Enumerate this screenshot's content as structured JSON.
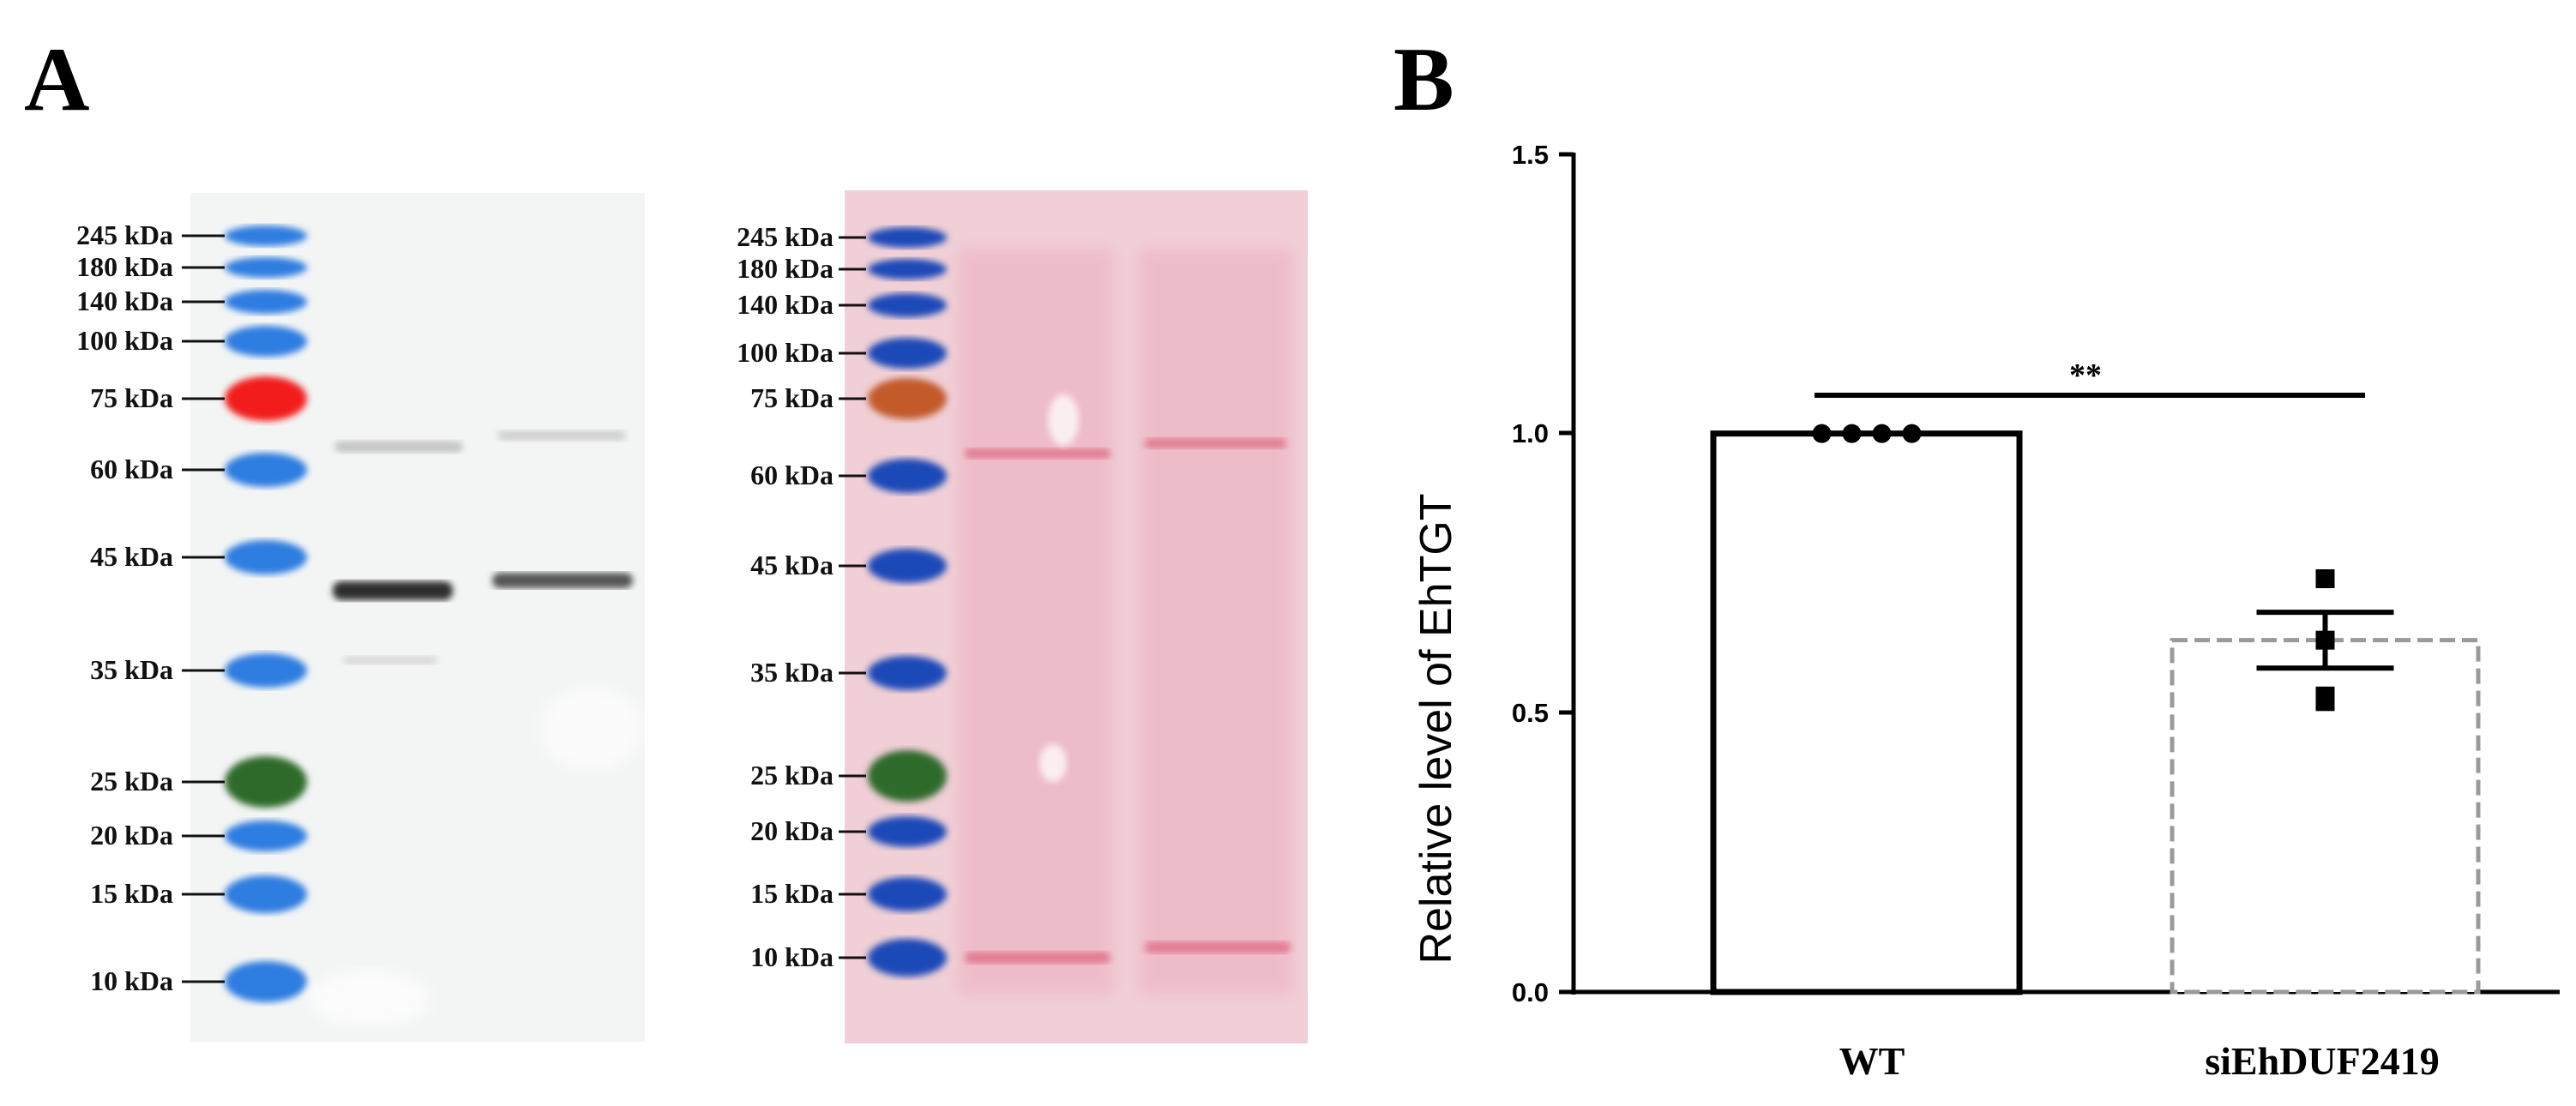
{
  "panels": {
    "a_label": "A",
    "b_label": "B"
  },
  "blot_left": {
    "marker_labels": [
      "245 kDa",
      "180 kDa",
      "140 kDa",
      "100 kDa",
      "75 kDa",
      "60 kDa",
      "45 kDa",
      "35 kDa",
      "25 kDa",
      "20 kDa",
      "15 kDa",
      "10 kDa"
    ],
    "marker_kda": [
      245,
      180,
      140,
      100,
      75,
      60,
      45,
      35,
      25,
      20,
      15,
      10
    ],
    "background_color": "#f3f5f5",
    "band_color": "#2e2e2e"
  },
  "blot_right": {
    "marker_labels": [
      "245 kDa",
      "180 kDa",
      "140 kDa",
      "100 kDa",
      "75 kDa",
      "60 kDa",
      "45 kDa",
      "35 kDa",
      "25 kDa",
      "20 kDa",
      "15 kDa",
      "10 kDa"
    ],
    "marker_kda": [
      245,
      180,
      140,
      100,
      75,
      60,
      45,
      35,
      25,
      20,
      15,
      10
    ],
    "background_color": "#f0cfd6",
    "band_color": "#e27d94"
  },
  "ladder_colors": {
    "blue": "#2f7de0",
    "dark_blue": "#1c49b8",
    "red": "#f21e1e",
    "orange": "#c25a2c",
    "green": "#2f6b29",
    "black": "#0a0a0a"
  },
  "chart_data": {
    "type": "bar",
    "categories": [
      "WT",
      "siEhDUF2419"
    ],
    "values": [
      1.0,
      0.63
    ],
    "error": [
      0,
      0.05
    ],
    "points": [
      [
        1.0,
        1.0,
        1.0,
        1.0
      ],
      [
        0.74,
        0.63,
        0.53,
        0.52
      ]
    ],
    "title": "",
    "xlabel": "",
    "ylabel": "Relative level of EhTGT",
    "ylim": [
      0,
      1.5
    ],
    "yticks": [
      0.0,
      0.5,
      1.0,
      1.5
    ],
    "ytick_labels": [
      "0.0",
      "0.5",
      "1.0",
      "1.5"
    ],
    "significance": {
      "label": "**",
      "between": [
        "WT",
        "siEhDUF2419"
      ]
    },
    "bar_styles": [
      "solid",
      "dashed"
    ]
  }
}
